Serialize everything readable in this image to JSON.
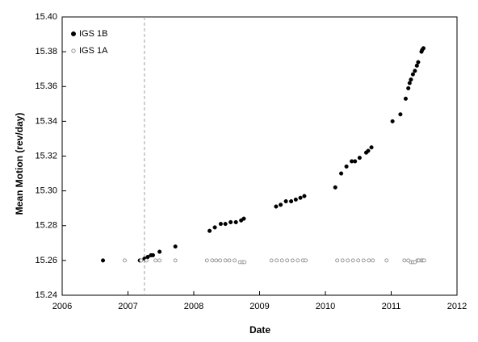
{
  "chart_data": {
    "type": "scatter",
    "xlabel": "Date",
    "ylabel": "Mean Motion (rev/day)",
    "xlim": [
      2006,
      2012
    ],
    "ylim": [
      15.24,
      15.4
    ],
    "x_ticks": [
      "2006",
      "2007",
      "2008",
      "2009",
      "2010",
      "2011",
      "2012"
    ],
    "y_ticks": [
      "15.24",
      "15.26",
      "15.28",
      "15.30",
      "15.32",
      "15.34",
      "15.36",
      "15.38",
      "15.40"
    ],
    "reference_line_x": 2007.25,
    "grid": false,
    "legend_position": "top-left",
    "colors": {
      "series_1": "#000000",
      "series_2": "#808080",
      "reference_line": "#a0a0a0"
    },
    "series": [
      {
        "name": "IGS 1B",
        "marker": "filled-circle",
        "points": [
          [
            2006.62,
            15.26
          ],
          [
            2007.18,
            15.26
          ],
          [
            2007.25,
            15.261
          ],
          [
            2007.3,
            15.262
          ],
          [
            2007.35,
            15.263
          ],
          [
            2007.38,
            15.263
          ],
          [
            2007.48,
            15.265
          ],
          [
            2007.72,
            15.268
          ],
          [
            2008.24,
            15.277
          ],
          [
            2008.32,
            15.279
          ],
          [
            2008.41,
            15.281
          ],
          [
            2008.48,
            15.281
          ],
          [
            2008.56,
            15.282
          ],
          [
            2008.64,
            15.282
          ],
          [
            2008.72,
            15.283
          ],
          [
            2008.76,
            15.284
          ],
          [
            2009.25,
            15.291
          ],
          [
            2009.32,
            15.292
          ],
          [
            2009.4,
            15.294
          ],
          [
            2009.48,
            15.294
          ],
          [
            2009.55,
            15.295
          ],
          [
            2009.62,
            15.296
          ],
          [
            2009.68,
            15.297
          ],
          [
            2010.15,
            15.302
          ],
          [
            2010.24,
            15.31
          ],
          [
            2010.32,
            15.314
          ],
          [
            2010.4,
            15.317
          ],
          [
            2010.45,
            15.317
          ],
          [
            2010.52,
            15.319
          ],
          [
            2010.62,
            15.322
          ],
          [
            2010.65,
            15.323
          ],
          [
            2010.7,
            15.325
          ],
          [
            2011.02,
            15.34
          ],
          [
            2011.14,
            15.344
          ],
          [
            2011.22,
            15.353
          ],
          [
            2011.26,
            15.359
          ],
          [
            2011.28,
            15.362
          ],
          [
            2011.3,
            15.364
          ],
          [
            2011.33,
            15.367
          ],
          [
            2011.36,
            15.369
          ],
          [
            2011.39,
            15.372
          ],
          [
            2011.41,
            15.374
          ],
          [
            2011.46,
            15.38
          ],
          [
            2011.47,
            15.381
          ],
          [
            2011.49,
            15.382
          ]
        ]
      },
      {
        "name": "IGS 1A",
        "marker": "open-circle",
        "points": [
          [
            2006.95,
            15.26
          ],
          [
            2007.2,
            15.26
          ],
          [
            2007.28,
            15.26
          ],
          [
            2007.42,
            15.26
          ],
          [
            2007.48,
            15.26
          ],
          [
            2007.72,
            15.26
          ],
          [
            2008.2,
            15.26
          ],
          [
            2008.28,
            15.26
          ],
          [
            2008.34,
            15.26
          ],
          [
            2008.4,
            15.26
          ],
          [
            2008.48,
            15.26
          ],
          [
            2008.54,
            15.26
          ],
          [
            2008.62,
            15.26
          ],
          [
            2008.7,
            15.259
          ],
          [
            2008.74,
            15.259
          ],
          [
            2008.77,
            15.259
          ],
          [
            2009.18,
            15.26
          ],
          [
            2009.26,
            15.26
          ],
          [
            2009.34,
            15.26
          ],
          [
            2009.42,
            15.26
          ],
          [
            2009.5,
            15.26
          ],
          [
            2009.58,
            15.26
          ],
          [
            2009.66,
            15.26
          ],
          [
            2009.7,
            15.26
          ],
          [
            2010.18,
            15.26
          ],
          [
            2010.26,
            15.26
          ],
          [
            2010.34,
            15.26
          ],
          [
            2010.42,
            15.26
          ],
          [
            2010.5,
            15.26
          ],
          [
            2010.58,
            15.26
          ],
          [
            2010.66,
            15.26
          ],
          [
            2010.72,
            15.26
          ],
          [
            2010.93,
            15.26
          ],
          [
            2011.2,
            15.26
          ],
          [
            2011.26,
            15.26
          ],
          [
            2011.3,
            15.259
          ],
          [
            2011.33,
            15.259
          ],
          [
            2011.36,
            15.259
          ],
          [
            2011.4,
            15.26
          ],
          [
            2011.42,
            15.26
          ],
          [
            2011.46,
            15.26
          ],
          [
            2011.48,
            15.26
          ],
          [
            2011.5,
            15.26
          ]
        ]
      }
    ]
  }
}
